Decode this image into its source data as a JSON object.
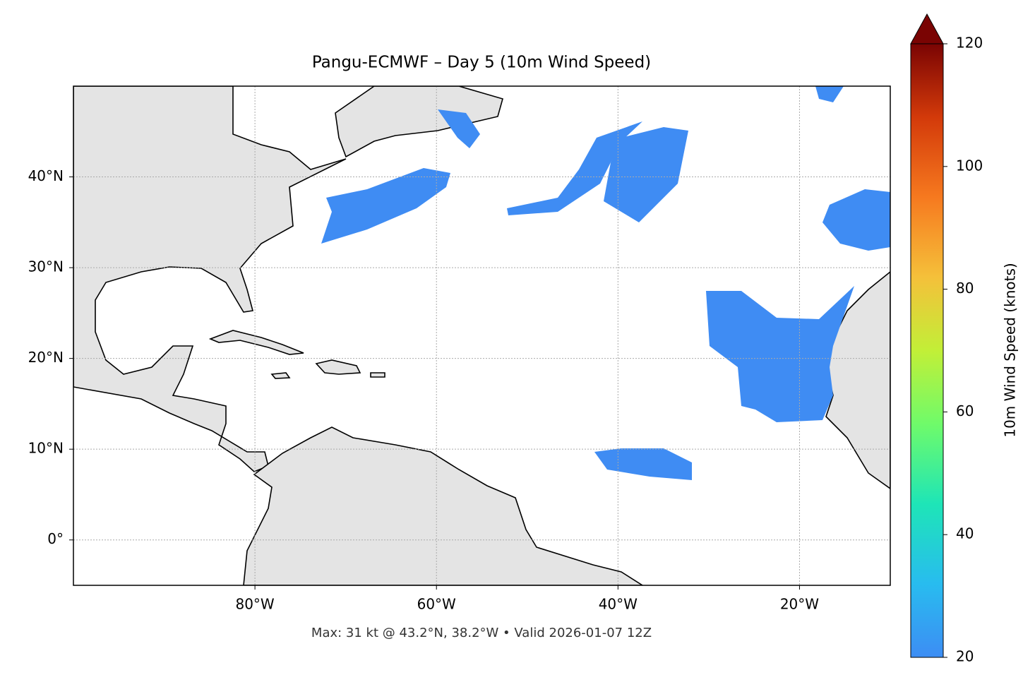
{
  "chart_data": {
    "type": "map",
    "title": "Pangu-ECMWF – Day 5 (10m Wind Speed)",
    "footnote": "Max: 31 kt @ 43.2°N, 38.2°W • Valid 2026-01-07 12Z",
    "xlim": [
      -100,
      -10
    ],
    "ylim": [
      -5,
      50
    ],
    "xticks": [
      {
        "value": -80,
        "label": "80°W"
      },
      {
        "value": -60,
        "label": "60°W"
      },
      {
        "value": -40,
        "label": "40°W"
      },
      {
        "value": -20,
        "label": "20°W"
      }
    ],
    "yticks": [
      {
        "value": 0,
        "label": "0°"
      },
      {
        "value": 10,
        "label": "10°N"
      },
      {
        "value": 20,
        "label": "20°N"
      },
      {
        "value": 30,
        "label": "30°N"
      },
      {
        "value": 40,
        "label": "40°N"
      }
    ],
    "grid": true,
    "colorbar": {
      "label": "10m Wind Speed (knots)",
      "lim": [
        20,
        120
      ],
      "ticks": [
        20,
        40,
        60,
        80,
        100,
        120
      ]
    }
  }
}
